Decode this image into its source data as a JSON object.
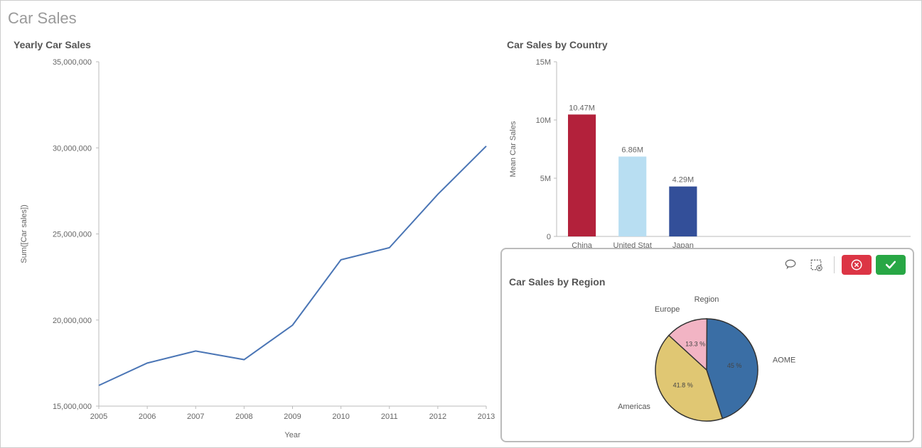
{
  "dashboard": {
    "title": "Car Sales"
  },
  "line_chart": {
    "type": "line",
    "title": "Yearly Car Sales",
    "x_label": "Year",
    "y_label": "Sum([Car sales])",
    "x_values": [
      "2005",
      "2006",
      "2007",
      "2008",
      "2009",
      "2010",
      "2011",
      "2012",
      "2013"
    ],
    "y_values": [
      16200000,
      17500000,
      18200000,
      17700000,
      19700000,
      23500000,
      24200000,
      27300000,
      30100000
    ],
    "y_ticks": [
      15000000,
      20000000,
      25000000,
      30000000,
      35000000
    ],
    "y_tick_labels": [
      "15,000,000",
      "20,000,000",
      "25,000,000",
      "30,000,000",
      "35,000,000"
    ],
    "ylim": [
      15000000,
      35000000
    ],
    "line_color": "#4a75b5",
    "line_width": 2,
    "axis_color": "#bbb",
    "background_color": "#ffffff",
    "label_fontsize": 11
  },
  "bar_chart": {
    "type": "bar",
    "title": "Car Sales by Country",
    "y_label": "Mean Car Sales",
    "categories": [
      "China",
      "United Stat",
      "Japan"
    ],
    "values": [
      10.47,
      6.86,
      4.29
    ],
    "value_labels": [
      "10.47M",
      "6.86M",
      "4.29M"
    ],
    "bar_colors": [
      "#b3213b",
      "#b8def2",
      "#334f99"
    ],
    "y_ticks": [
      0,
      5,
      10,
      15
    ],
    "y_tick_labels": [
      "0",
      "5M",
      "10M",
      "15M"
    ],
    "ylim": [
      0,
      15
    ],
    "axis_color": "#bbb",
    "bar_width": 0.55,
    "background_color": "#ffffff",
    "label_fontsize": 11
  },
  "pie_chart": {
    "type": "pie",
    "title": "Car Sales by Region",
    "group_label": "Region",
    "slices": [
      {
        "region": "AOME",
        "pct": 45,
        "pct_label": "45 %",
        "color": "#3a6ea5"
      },
      {
        "region": "Americas",
        "pct": 41.8,
        "pct_label": "41.8 %",
        "color": "#e0c773"
      },
      {
        "region": "Europe",
        "pct": 13.3,
        "pct_label": "13.3 %",
        "color": "#f2b4c4"
      }
    ],
    "stroke_color": "#333",
    "stroke_width": 1.5,
    "background_color": "#ffffff",
    "label_fontsize": 11
  },
  "toolbar": {
    "lasso_title": "Lasso selection",
    "clear_title": "Clear",
    "cancel_title": "Cancel",
    "confirm_title": "Confirm"
  }
}
